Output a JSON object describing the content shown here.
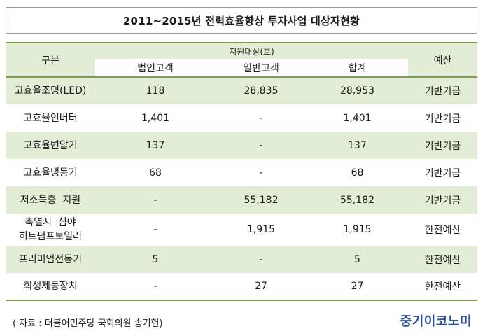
{
  "title": "2011~2015년  전력효율향상  투자사업  대상자현황",
  "header": {
    "col_gubun": "구분",
    "group": "지원대상(호)",
    "col_corp": "법인고객",
    "col_general": "일반고객",
    "col_total": "합계",
    "col_budget": "예산"
  },
  "rows": [
    {
      "name": "고효율조명(LED)",
      "corp": "118",
      "general": "28,835",
      "total": "28,953",
      "budget": "기반기금"
    },
    {
      "name": "고효율인버터",
      "corp": "1,401",
      "general": "-",
      "total": "1,401",
      "budget": "기반기금"
    },
    {
      "name": "고효율변압기",
      "corp": "137",
      "general": "-",
      "total": "137",
      "budget": "기반기금"
    },
    {
      "name": "고효율냉동기",
      "corp": "68",
      "general": "-",
      "total": "68",
      "budget": "기반기금"
    },
    {
      "name": "저소득층  지원",
      "corp": "-",
      "general": "55,182",
      "total": "55,182",
      "budget": "기반기금"
    },
    {
      "name_line1": "축열시  심야",
      "name_line2": "히트펌프보일러",
      "corp": "-",
      "general": "1,915",
      "total": "1,915",
      "budget": "한전예산"
    },
    {
      "name": "프리미엄전동기",
      "corp": "5",
      "general": "-",
      "total": "5",
      "budget": "한전예산"
    },
    {
      "name": "회생제동장치",
      "corp": "-",
      "general": "27",
      "total": "27",
      "budget": "한전예산"
    }
  ],
  "footer": {
    "source": "( 자료 : 더불어민주당 국회의원 송기헌)",
    "logo": "중기이코노미"
  }
}
